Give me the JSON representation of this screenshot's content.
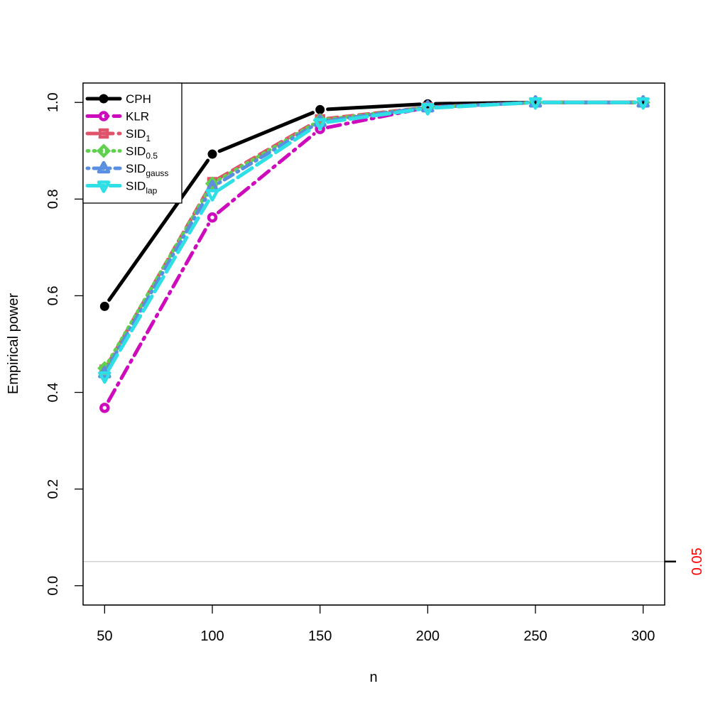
{
  "chart_data": {
    "type": "line",
    "title": "",
    "xlabel": "n",
    "ylabel": "Empirical power",
    "x": [
      50,
      100,
      150,
      200,
      250,
      300
    ],
    "xticks": [
      "50",
      "100",
      "150",
      "200",
      "250",
      "300"
    ],
    "yticks": [
      "0.0",
      "0.2",
      "0.4",
      "0.6",
      "0.8",
      "1.0"
    ],
    "xlim": [
      40,
      310
    ],
    "ylim": [
      -0.04,
      1.04
    ],
    "reference_line": {
      "value": 0.05,
      "label": "0.05",
      "color": "#ff0000",
      "line_color": "#d3d3d3"
    },
    "legend_position": "top-left",
    "grid": false,
    "series": [
      {
        "name": "CPH",
        "base": "CPH",
        "sub": "",
        "color": "#000000",
        "dash": "solid",
        "marker": "filled-circle",
        "values": [
          0.578,
          0.893,
          0.985,
          0.997,
          1.0,
          1.0
        ]
      },
      {
        "name": "KLR",
        "base": "KLR",
        "sub": "",
        "color": "#cd0bbc",
        "dash": "dashdot",
        "marker": "open-circle",
        "values": [
          0.368,
          0.762,
          0.945,
          0.99,
          1.0,
          1.0
        ]
      },
      {
        "name": "SID1",
        "base": "SID",
        "sub": "1",
        "color": "#df536b",
        "dash": "dashed",
        "marker": "open-square",
        "values": [
          0.447,
          0.835,
          0.965,
          0.99,
          1.0,
          1.0
        ]
      },
      {
        "name": "SID0.5",
        "base": "SID",
        "sub": "0.5",
        "color": "#61d04f",
        "dash": "dotted",
        "marker": "open-diamond",
        "values": [
          0.45,
          0.832,
          0.963,
          0.99,
          1.0,
          1.0
        ]
      },
      {
        "name": "SIDgauss",
        "base": "SID",
        "sub": "gauss",
        "color": "#5a8ee0",
        "dash": "dotdash",
        "marker": "open-triangle-up",
        "values": [
          0.44,
          0.825,
          0.96,
          0.99,
          1.0,
          1.0
        ]
      },
      {
        "name": "SIDlap",
        "base": "SID",
        "sub": "lap",
        "color": "#2fdfe6",
        "dash": "longdash",
        "marker": "open-triangle-down",
        "values": [
          0.433,
          0.81,
          0.957,
          0.988,
          1.0,
          1.0
        ]
      }
    ]
  }
}
